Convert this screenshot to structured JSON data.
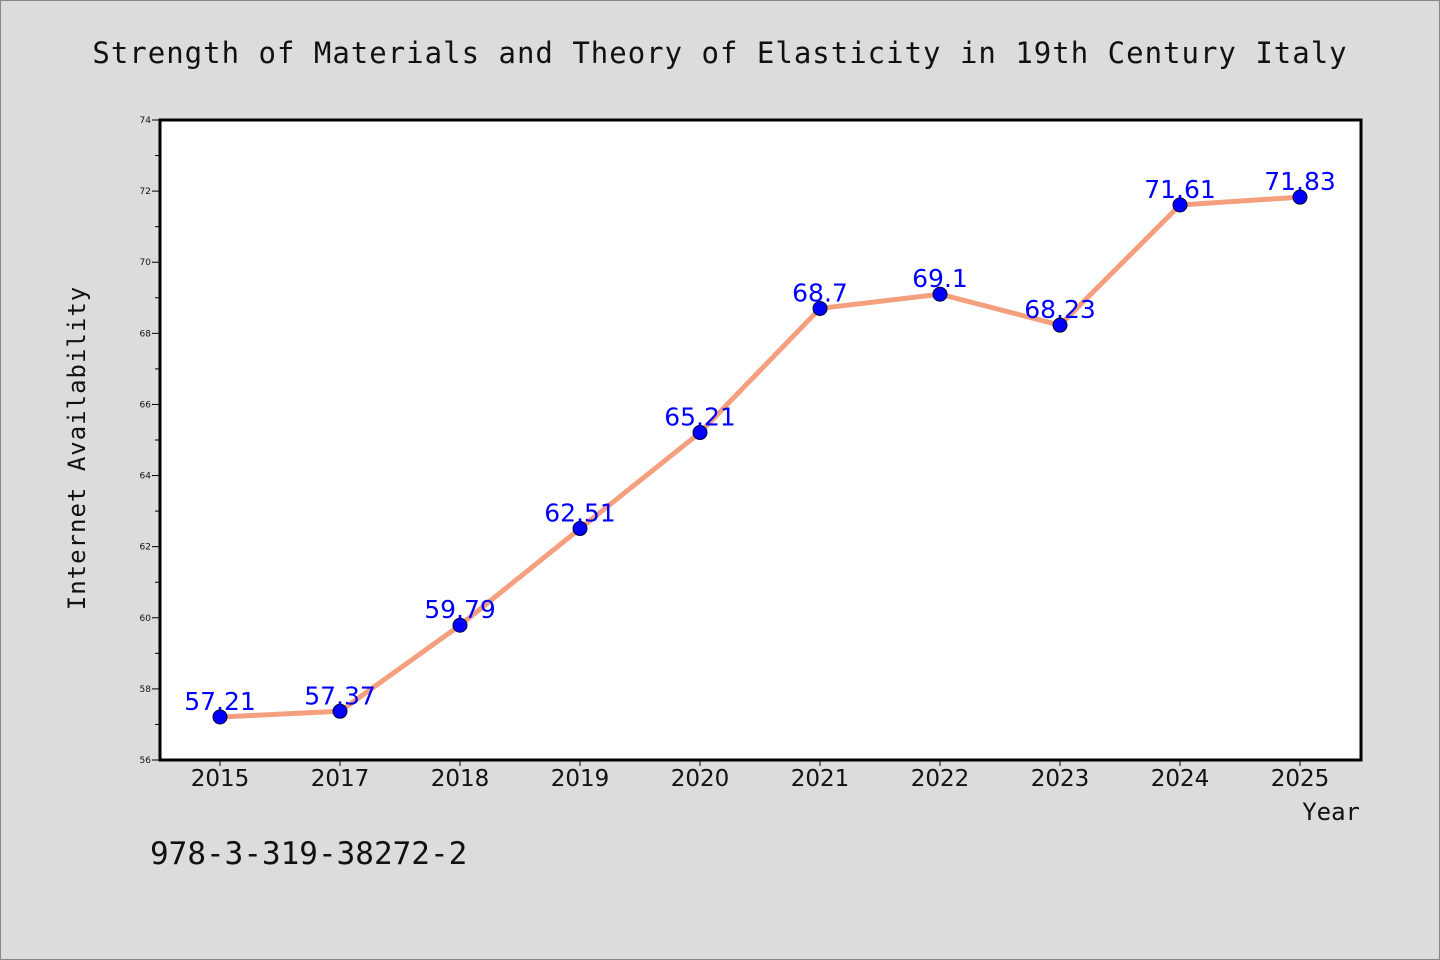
{
  "chart_data": {
    "type": "line",
    "title": "Strength of Materials and Theory of Elasticity in 19th Century Italy",
    "xlabel": "Year",
    "ylabel": "Internet Availability",
    "categories": [
      "2015",
      "2017",
      "2018",
      "2019",
      "2020",
      "2021",
      "2022",
      "2023",
      "2024",
      "2025"
    ],
    "series": [
      {
        "values": [
          57.21,
          57.37,
          59.79,
          62.51,
          65.21,
          68.7,
          69.1,
          68.23,
          71.61,
          71.83
        ],
        "labels": [
          "57.21",
          "57.37",
          "59.79",
          "62.51",
          "65.21",
          "68.7",
          "69.1",
          "68.23",
          "71.61",
          "71.83"
        ]
      }
    ],
    "ylim": [
      56,
      74
    ],
    "yticks": [
      56,
      58,
      60,
      62,
      64,
      66,
      68,
      70,
      72,
      74
    ],
    "grid": false,
    "line_color": "#f4a07e",
    "marker_color": "#0000ff",
    "label_color": "#0000ff"
  },
  "footnote": "978-3-319-38272-2"
}
